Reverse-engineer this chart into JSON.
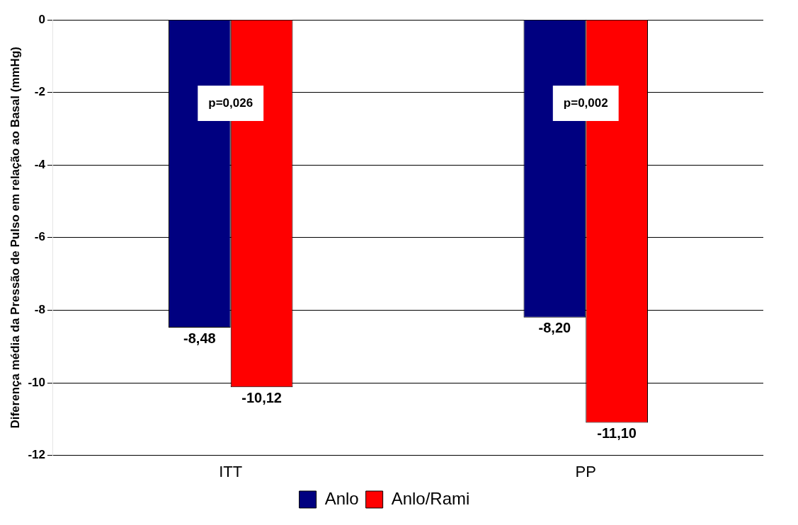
{
  "chart_data": {
    "type": "bar",
    "ylabel": "Diferença média da Pressão de Pulso em relação ao Basal (mmHg)",
    "categories": [
      "ITT",
      "PP"
    ],
    "series": [
      {
        "name": "Anlo",
        "color": "#000080",
        "values": [
          -8.48,
          -8.2
        ],
        "value_labels": [
          "-8,48",
          "-8,20"
        ]
      },
      {
        "name": "Anlo/Rami",
        "color": "#ff0000",
        "values": [
          -10.12,
          -11.1
        ],
        "value_labels": [
          "-10,12",
          "-11,10"
        ]
      }
    ],
    "ylim": [
      -12,
      0
    ],
    "yticks": [
      0,
      -2,
      -4,
      -6,
      -8,
      -10,
      -12
    ],
    "grid": "y",
    "legend": "bottom",
    "annotations": [
      {
        "text": "p=0,026",
        "x": "ITT",
        "y": -2.3
      },
      {
        "text": "p=0,002",
        "x": "PP",
        "y": -2.3
      }
    ]
  }
}
